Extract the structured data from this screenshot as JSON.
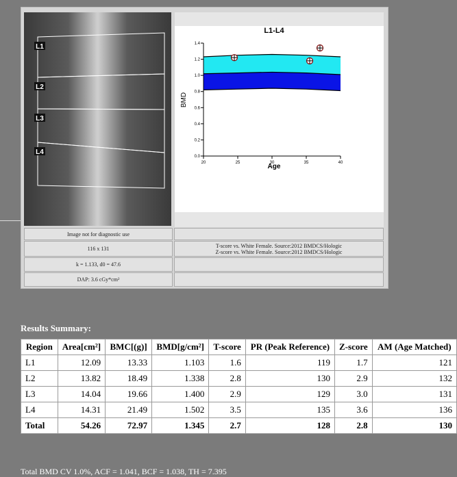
{
  "image": {
    "labels": [
      "L1",
      "L2",
      "L3",
      "L4"
    ]
  },
  "info_left": [
    "Image not for diagnostic use",
    "116 x 131",
    "k = 1.133, d0 = 47.6",
    "DAP: 3.6 cGy*cm²"
  ],
  "info_right": [
    "T-score vs. White Female. Source:2012 BMDCS/Hologic",
    "Z-score vs. White Female. Source:2012 BMDCS/Hologic"
  ],
  "chart_data": {
    "type": "scatter",
    "title": "L1-L4",
    "x_label": "Age",
    "y_label": "BMD",
    "xlim": [
      20,
      40
    ],
    "xticks": [
      20,
      25,
      30,
      35,
      40
    ],
    "ylim": [
      0,
      1.4
    ],
    "yticks": [
      {
        "value": 0,
        "label": "0.0"
      },
      0.2,
      0.4,
      0.6,
      0.8,
      {
        "value": 1,
        "label": "1.0"
      },
      1.2,
      1.4
    ],
    "bands": {
      "x": [
        20,
        25,
        30,
        35,
        40
      ],
      "upper": [
        1.23,
        1.25,
        1.26,
        1.25,
        1.23
      ],
      "middle": [
        1.02,
        1.03,
        1.04,
        1.03,
        1.01
      ],
      "lower": [
        0.82,
        0.83,
        0.84,
        0.83,
        0.81
      ],
      "upper_color": "#22e8f2",
      "lower_color": "#0a14e6"
    },
    "x": [
      24.5,
      37,
      35.5
    ],
    "values": [
      1.22,
      1.34,
      1.18
    ],
    "color": "#8b1a1a"
  },
  "results": {
    "title": "Results Summary:",
    "header": [
      "Region",
      "Area[cm²]",
      "BMC[(g)]",
      "BMD[g/cm²]",
      "T-score",
      "PR (Peak Reference)",
      "Z-score",
      "AM (Age Matched)"
    ],
    "rows": [
      [
        "L1",
        "12.09",
        "13.33",
        "1.103",
        "1.6",
        "119",
        "1.7",
        "121"
      ],
      [
        "L2",
        "13.82",
        "18.49",
        "1.338",
        "2.8",
        "130",
        "2.9",
        "132"
      ],
      [
        "L3",
        "14.04",
        "19.66",
        "1.400",
        "2.9",
        "129",
        "3.0",
        "131"
      ],
      [
        "L4",
        "14.31",
        "21.49",
        "1.502",
        "3.5",
        "135",
        "3.6",
        "136"
      ],
      [
        "Total",
        "54.26",
        "72.97",
        "1.345",
        "2.7",
        "128",
        "2.8",
        "130"
      ]
    ]
  },
  "footer": "Total BMD CV 1.0%, ACF = 1.041, BCF = 1.038, TH = 7.395"
}
